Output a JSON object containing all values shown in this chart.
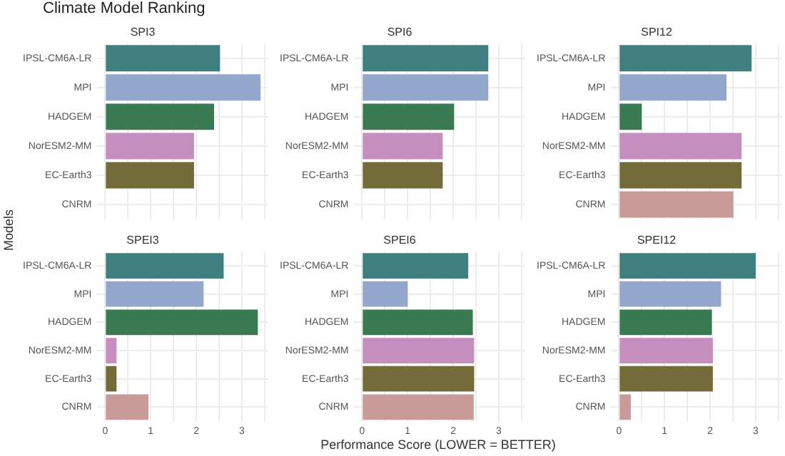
{
  "chart_data": [
    {
      "type": "bar",
      "orientation": "horizontal",
      "title": "SPI3",
      "annotations": [
        "Climate Model Ranking"
      ],
      "ylabel": "Models",
      "categories": [
        "IPSL-CM6A-LR",
        "MPI",
        "HADGEM",
        "NorESM2-MM",
        "EC-Earth3",
        "CNRM"
      ],
      "values": [
        2.52,
        3.41,
        2.39,
        1.95,
        1.95,
        null
      ],
      "colors": [
        "#3f7f7f",
        "#93a6cc",
        "#3a7a52",
        "#c48ebf",
        "#746b3a",
        "#c89b98"
      ],
      "xlim": [
        -0.17,
        3.58
      ],
      "xticks": [
        0,
        {
          "value": 0.5,
          "label": null
        },
        1,
        {
          "value": 1.5,
          "label": null
        },
        2,
        {
          "value": 2.5,
          "label": null
        },
        3,
        {
          "value": 3.5,
          "label": null
        }
      ],
      "grid": true,
      "tick_labels": "y"
    },
    {
      "type": "bar",
      "orientation": "horizontal",
      "title": "SPI6",
      "categories": [
        "IPSL-CM6A-LR",
        "MPI",
        "HADGEM",
        "NorESM2-MM",
        "EC-Earth3",
        "CNRM"
      ],
      "values": [
        2.77,
        2.77,
        2.02,
        1.77,
        1.77,
        null
      ],
      "colors": [
        "#3f7f7f",
        "#93a6cc",
        "#3a7a52",
        "#c48ebf",
        "#746b3a",
        "#c89b98"
      ],
      "xlim": [
        -0.17,
        3.58
      ],
      "xticks": [
        0,
        {
          "value": 0.5,
          "label": null
        },
        1,
        {
          "value": 1.5,
          "label": null
        },
        2,
        {
          "value": 2.5,
          "label": null
        },
        3,
        {
          "value": 3.5,
          "label": null
        }
      ],
      "grid": true,
      "tick_labels": "y"
    },
    {
      "type": "bar",
      "orientation": "horizontal",
      "title": "SPI12",
      "categories": [
        "IPSL-CM6A-LR",
        "MPI",
        "HADGEM",
        "NorESM2-MM",
        "EC-Earth3",
        "CNRM"
      ],
      "values": [
        2.91,
        2.36,
        0.5,
        2.69,
        2.69,
        2.51
      ],
      "colors": [
        "#3f7f7f",
        "#93a6cc",
        "#3a7a52",
        "#c48ebf",
        "#746b3a",
        "#c89b98"
      ],
      "xlim": [
        -0.17,
        3.58
      ],
      "xticks": [
        0,
        {
          "value": 0.5,
          "label": null
        },
        1,
        {
          "value": 1.5,
          "label": null
        },
        2,
        {
          "value": 2.5,
          "label": null
        },
        3,
        {
          "value": 3.5,
          "label": null
        }
      ],
      "grid": true,
      "tick_labels": "y"
    },
    {
      "type": "bar",
      "orientation": "horizontal",
      "title": "SPEI3",
      "categories": [
        "IPSL-CM6A-LR",
        "MPI",
        "HADGEM",
        "NorESM2-MM",
        "EC-Earth3",
        "CNRM"
      ],
      "values": [
        2.6,
        2.16,
        3.35,
        0.25,
        0.25,
        0.95
      ],
      "colors": [
        "#3f7f7f",
        "#93a6cc",
        "#3a7a52",
        "#c48ebf",
        "#746b3a",
        "#c89b98"
      ],
      "xlim": [
        -0.17,
        3.58
      ],
      "xticks": [
        0,
        {
          "value": 0.5,
          "label": null
        },
        1,
        {
          "value": 1.5,
          "label": null
        },
        2,
        {
          "value": 2.5,
          "label": null
        },
        3,
        {
          "value": 3.5,
          "label": null
        }
      ],
      "grid": true
    },
    {
      "type": "bar",
      "orientation": "horizontal",
      "title": "SPEI6",
      "xlabel": "Performance Score (LOWER = BETTER)",
      "categories": [
        "IPSL-CM6A-LR",
        "MPI",
        "HADGEM",
        "NorESM2-MM",
        "EC-Earth3",
        "CNRM"
      ],
      "values": [
        2.33,
        1.0,
        2.43,
        2.46,
        2.46,
        2.45
      ],
      "colors": [
        "#3f7f7f",
        "#93a6cc",
        "#3a7a52",
        "#c48ebf",
        "#746b3a",
        "#c89b98"
      ],
      "xlim": [
        -0.17,
        3.58
      ],
      "xticks": [
        0,
        {
          "value": 0.5,
          "label": null
        },
        1,
        {
          "value": 1.5,
          "label": null
        },
        2,
        {
          "value": 2.5,
          "label": null
        },
        3,
        {
          "value": 3.5,
          "label": null
        }
      ],
      "grid": true
    },
    {
      "type": "bar",
      "orientation": "horizontal",
      "title": "SPEI12",
      "categories": [
        "IPSL-CM6A-LR",
        "MPI",
        "HADGEM",
        "NorESM2-MM",
        "EC-Earth3",
        "CNRM"
      ],
      "values": [
        3.0,
        2.24,
        2.04,
        2.06,
        2.06,
        0.26
      ],
      "colors": [
        "#3f7f7f",
        "#93a6cc",
        "#3a7a52",
        "#c48ebf",
        "#746b3a",
        "#c89b98"
      ],
      "xlim": [
        -0.17,
        3.58
      ],
      "xticks": [
        0,
        {
          "value": 0.5,
          "label": null
        },
        1,
        {
          "value": 1.5,
          "label": null
        },
        2,
        {
          "value": 2.5,
          "label": null
        },
        3,
        {
          "value": 3.5,
          "label": null
        }
      ],
      "grid": true
    }
  ]
}
